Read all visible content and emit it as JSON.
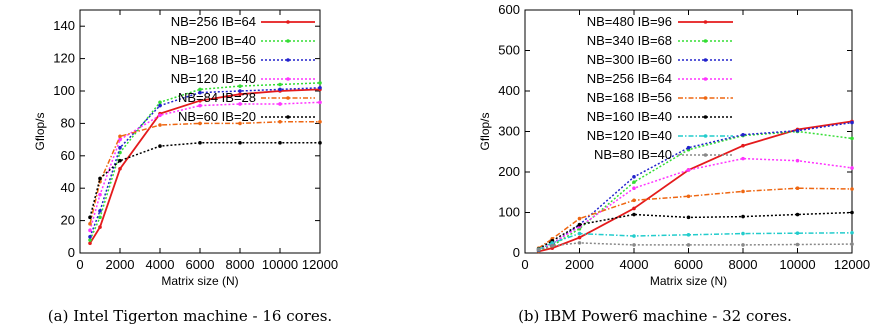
{
  "chart_data": [
    {
      "type": "line",
      "caption": "(a) Intel Tigerton machine - 16 cores.",
      "xlabel": "Matrix size (N)",
      "ylabel": "Gflop/s",
      "xlim": [
        0,
        12000
      ],
      "ylim": [
        0,
        150
      ],
      "xticks": [
        0,
        2000,
        4000,
        6000,
        8000,
        10000,
        12000
      ],
      "yticks": [
        0,
        20,
        40,
        60,
        80,
        100,
        120,
        140
      ],
      "grid": false,
      "legend_position": "top-right",
      "x": [
        500,
        1000,
        2000,
        4000,
        6000,
        8000,
        10000,
        12000
      ],
      "series": [
        {
          "name": "NB=256 IB=64",
          "color": "#e41a1c",
          "dash": "solid",
          "values": [
            6,
            16,
            52,
            86,
            94,
            98,
            100,
            101
          ]
        },
        {
          "name": "NB=200 IB=40",
          "color": "#33dd33",
          "dash": "dotted",
          "values": [
            8,
            22,
            62,
            93,
            101,
            103,
            104,
            105
          ]
        },
        {
          "name": "NB=168 IB=56",
          "color": "#2222cc",
          "dash": "dotted",
          "values": [
            10,
            26,
            65,
            91,
            99,
            100,
            101,
            102
          ]
        },
        {
          "name": "NB=120 IB=40",
          "color": "#ff33ff",
          "dash": "dotted",
          "values": [
            14,
            36,
            70,
            85,
            91,
            92,
            92,
            93
          ]
        },
        {
          "name": "NB=84 IB=28",
          "color": "#ee6611",
          "dash": "dashdot",
          "values": [
            18,
            44,
            72,
            79,
            80,
            80,
            81,
            81
          ]
        },
        {
          "name": "NB=60 IB=20",
          "color": "#000000",
          "dash": "dotted",
          "values": [
            22,
            46,
            57,
            66,
            68,
            68,
            68,
            68
          ]
        }
      ]
    },
    {
      "type": "line",
      "caption": "(b) IBM Power6 machine - 32 cores.",
      "xlabel": "Matrix size (N)",
      "ylabel": "Gflop/s",
      "xlim": [
        0,
        12000
      ],
      "ylim": [
        0,
        600
      ],
      "xticks": [
        0,
        2000,
        4000,
        6000,
        8000,
        10000,
        12000
      ],
      "yticks": [
        0,
        100,
        200,
        300,
        400,
        500,
        600
      ],
      "grid": false,
      "legend_position": "top-left",
      "x": [
        500,
        1000,
        2000,
        4000,
        6000,
        8000,
        10000,
        12000
      ],
      "series": [
        {
          "name": "NB=480 IB=96",
          "color": "#e41a1c",
          "dash": "solid",
          "values": [
            4,
            12,
            38,
            110,
            205,
            265,
            305,
            325
          ]
        },
        {
          "name": "NB=340 IB=68",
          "color": "#33dd33",
          "dash": "dotted",
          "values": [
            6,
            18,
            60,
            175,
            255,
            290,
            300,
            283
          ]
        },
        {
          "name": "NB=300 IB=60",
          "color": "#2222cc",
          "dash": "dotted",
          "values": [
            7,
            22,
            70,
            188,
            260,
            292,
            302,
            322
          ]
        },
        {
          "name": "NB=256 IB=64",
          "color": "#ff33ff",
          "dash": "dotted",
          "values": [
            8,
            24,
            65,
            160,
            205,
            233,
            228,
            210
          ]
        },
        {
          "name": "NB=168 IB=56",
          "color": "#ee6611",
          "dash": "dashdot",
          "values": [
            12,
            35,
            85,
            130,
            140,
            152,
            160,
            158
          ]
        },
        {
          "name": "NB=160 IB=40",
          "color": "#000000",
          "dash": "dotted",
          "values": [
            10,
            30,
            70,
            95,
            88,
            90,
            95,
            100
          ]
        },
        {
          "name": "NB=120 IB=40",
          "color": "#22cccc",
          "dash": "dashdot",
          "values": [
            9,
            25,
            48,
            42,
            45,
            48,
            49,
            50
          ]
        },
        {
          "name": "NB=80 IB=40",
          "color": "#888888",
          "dash": "dotted",
          "values": [
            8,
            18,
            25,
            20,
            20,
            20,
            21,
            22
          ]
        }
      ]
    }
  ]
}
